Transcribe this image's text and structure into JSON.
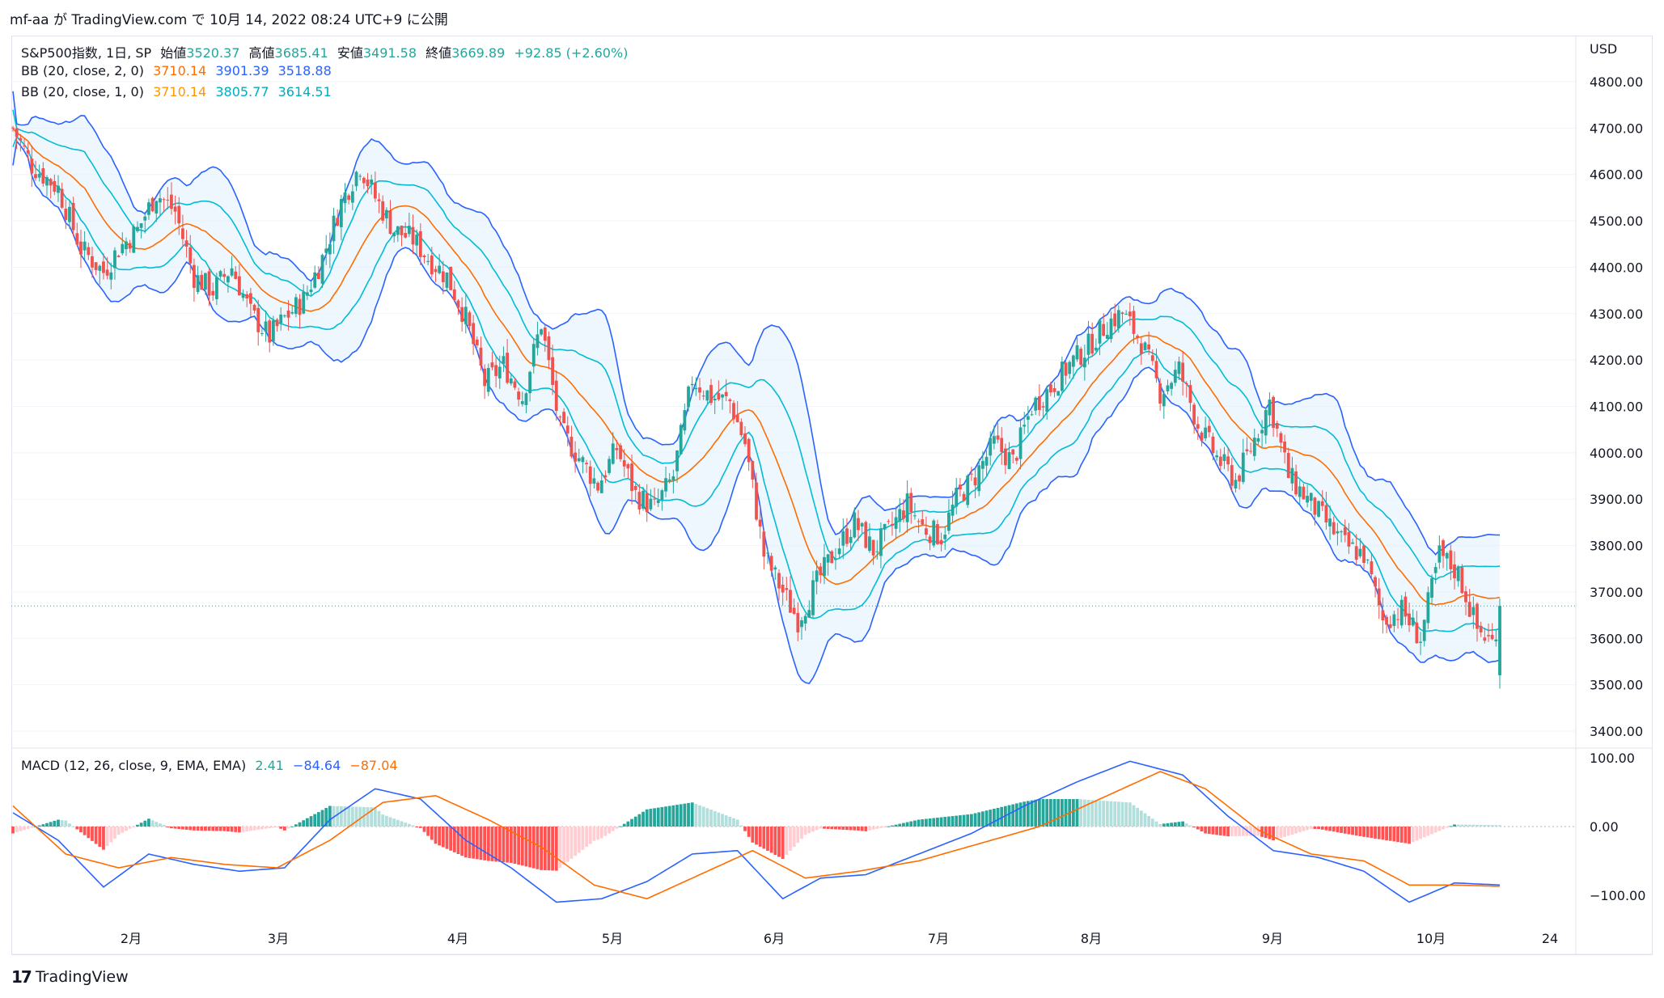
{
  "header": {
    "caption": "mf-aa が TradingView.com で 10月 14, 2022 08:24 UTC+9 に公開"
  },
  "legend": {
    "symbol": "S&P500指数, 1日, SP",
    "open_label": "始値",
    "open": "3520.37",
    "high_label": "高値",
    "high": "3685.41",
    "low_label": "安値",
    "low": "3491.58",
    "close_label": "終値",
    "close": "3669.89",
    "change": "+92.85 (+2.60%)",
    "bb1_label": "BB (20, close, 2, 0)",
    "bb1_basis": "3710.14",
    "bb1_upper": "3901.39",
    "bb1_lower": "3518.88",
    "bb2_label": "BB (20, close, 1, 0)",
    "bb2_basis": "3710.14",
    "bb2_upper": "3805.77",
    "bb2_lower": "3614.51",
    "macd_label": "MACD (12, 26, close, 9, EMA, EMA)",
    "macd_hist": "2.41",
    "macd_line": "−84.64",
    "macd_signal": "−87.04"
  },
  "footer": {
    "brand": "TradingView",
    "logo": "17"
  },
  "colors": {
    "up": "#26a69a",
    "down": "#ef5350",
    "basis": "#ff6d00",
    "bb2": "#2962ff",
    "bb1": "#00bcd4",
    "macd": "#2962ff",
    "signal": "#ff6d00",
    "fill": "#e3f2fd"
  },
  "chart_data": [
    {
      "type": "candlestick",
      "price_axis_label": "USD",
      "y_ticks": [
        "4800.00",
        "4700.00",
        "4600.00",
        "4500.00",
        "4400.00",
        "4300.00",
        "4200.00",
        "4100.00",
        "4000.00",
        "3900.00",
        "3800.00",
        "3700.00",
        "3600.00",
        "3500.00",
        "3400.00"
      ],
      "x_ticks": [
        "2月",
        "3月",
        "4月",
        "5月",
        "6月",
        "7月",
        "8月",
        "9月",
        "10月",
        "24"
      ],
      "ylim": [
        3400,
        4800
      ],
      "last_price": 3669.89,
      "close_path": [
        [
          0,
          4700
        ],
        [
          5,
          4620
        ],
        [
          12,
          4570
        ],
        [
          18,
          4440
        ],
        [
          24,
          4390
        ],
        [
          28,
          4440
        ],
        [
          33,
          4480
        ],
        [
          38,
          4560
        ],
        [
          43,
          4520
        ],
        [
          48,
          4380
        ],
        [
          53,
          4350
        ],
        [
          58,
          4400
        ],
        [
          63,
          4300
        ],
        [
          68,
          4250
        ],
        [
          72,
          4290
        ],
        [
          77,
          4330
        ],
        [
          82,
          4420
        ],
        [
          87,
          4540
        ],
        [
          92,
          4620
        ],
        [
          96,
          4550
        ],
        [
          101,
          4480
        ],
        [
          106,
          4460
        ],
        [
          110,
          4420
        ],
        [
          115,
          4380
        ],
        [
          120,
          4290
        ],
        [
          125,
          4150
        ],
        [
          130,
          4190
        ],
        [
          135,
          4120
        ],
        [
          140,
          4280
        ],
        [
          145,
          4050
        ],
        [
          150,
          3990
        ],
        [
          155,
          3930
        ],
        [
          160,
          4010
        ],
        [
          165,
          3910
        ],
        [
          170,
          3880
        ],
        [
          175,
          3950
        ],
        [
          180,
          4160
        ],
        [
          185,
          4120
        ],
        [
          190,
          4110
        ],
        [
          194,
          4020
        ],
        [
          199,
          3780
        ],
        [
          204,
          3700
        ],
        [
          208,
          3640
        ],
        [
          213,
          3720
        ],
        [
          218,
          3790
        ],
        [
          223,
          3850
        ],
        [
          228,
          3790
        ],
        [
          232,
          3830
        ],
        [
          237,
          3890
        ],
        [
          241,
          3840
        ],
        [
          246,
          3820
        ],
        [
          250,
          3900
        ],
        [
          255,
          3950
        ],
        [
          260,
          4020
        ],
        [
          265,
          3980
        ],
        [
          270,
          4100
        ],
        [
          275,
          4140
        ],
        [
          280,
          4190
        ],
        [
          285,
          4230
        ],
        [
          290,
          4280
        ],
        [
          294,
          4300
        ],
        [
          299,
          4240
        ],
        [
          304,
          4130
        ],
        [
          309,
          4180
        ],
        [
          314,
          4060
        ],
        [
          319,
          3990
        ],
        [
          324,
          3940
        ],
        [
          328,
          4010
        ],
        [
          333,
          4110
        ],
        [
          338,
          3950
        ],
        [
          343,
          3900
        ],
        [
          348,
          3850
        ],
        [
          353,
          3800
        ],
        [
          358,
          3780
        ],
        [
          363,
          3640
        ],
        [
          368,
          3660
        ],
        [
          373,
          3600
        ],
        [
          378,
          3780
        ],
        [
          383,
          3740
        ],
        [
          388,
          3620
        ],
        [
          392,
          3590
        ],
        [
          394,
          3660
        ]
      ],
      "bollinger_20_2": {
        "basis": 3710.14,
        "upper": 3901.39,
        "lower": 3518.88
      },
      "bollinger_20_1": {
        "basis": 3710.14,
        "upper": 3805.77,
        "lower": 3614.51
      }
    },
    {
      "type": "macd",
      "y_ticks": [
        "100.00",
        "0.00",
        "−100.00"
      ],
      "ylim": [
        -110,
        110
      ],
      "macd_path": [
        [
          0,
          20
        ],
        [
          12,
          -20
        ],
        [
          24,
          -88
        ],
        [
          36,
          -40
        ],
        [
          48,
          -55
        ],
        [
          60,
          -65
        ],
        [
          72,
          -60
        ],
        [
          84,
          10
        ],
        [
          96,
          55
        ],
        [
          108,
          40
        ],
        [
          120,
          -20
        ],
        [
          132,
          -60
        ],
        [
          144,
          -110
        ],
        [
          156,
          -105
        ],
        [
          168,
          -80
        ],
        [
          180,
          -40
        ],
        [
          192,
          -35
        ],
        [
          204,
          -105
        ],
        [
          214,
          -75
        ],
        [
          226,
          -70
        ],
        [
          240,
          -40
        ],
        [
          254,
          -10
        ],
        [
          268,
          30
        ],
        [
          282,
          65
        ],
        [
          296,
          95
        ],
        [
          310,
          75
        ],
        [
          322,
          15
        ],
        [
          334,
          -35
        ],
        [
          346,
          -45
        ],
        [
          358,
          -65
        ],
        [
          370,
          -110
        ],
        [
          382,
          -82
        ],
        [
          394,
          -85
        ]
      ],
      "signal_path": [
        [
          0,
          30
        ],
        [
          14,
          -40
        ],
        [
          28,
          -60
        ],
        [
          42,
          -45
        ],
        [
          56,
          -55
        ],
        [
          70,
          -60
        ],
        [
          84,
          -20
        ],
        [
          98,
          35
        ],
        [
          112,
          45
        ],
        [
          126,
          10
        ],
        [
          140,
          -30
        ],
        [
          154,
          -85
        ],
        [
          168,
          -105
        ],
        [
          182,
          -70
        ],
        [
          196,
          -35
        ],
        [
          210,
          -75
        ],
        [
          224,
          -65
        ],
        [
          240,
          -50
        ],
        [
          256,
          -25
        ],
        [
          272,
          0
        ],
        [
          288,
          40
        ],
        [
          304,
          80
        ],
        [
          316,
          55
        ],
        [
          330,
          -5
        ],
        [
          344,
          -40
        ],
        [
          358,
          -50
        ],
        [
          370,
          -85
        ],
        [
          382,
          -85
        ],
        [
          394,
          -87
        ]
      ]
    }
  ]
}
